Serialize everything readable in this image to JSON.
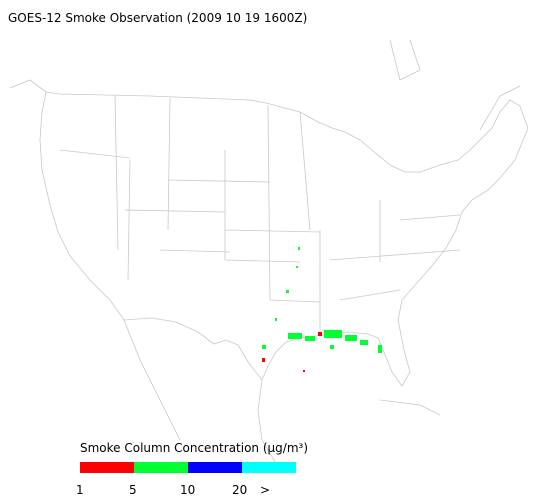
{
  "title": "GOES-12 Smoke Observation (2009 10 19  1600Z)",
  "legend": {
    "title": "Smoke Column Concentration (μg/m³)",
    "colors": [
      "#ff0000",
      "#00ff33",
      "#0000ff",
      "#00ffff"
    ],
    "labels": [
      "1",
      "5",
      "10",
      "20",
      ">"
    ]
  }
}
